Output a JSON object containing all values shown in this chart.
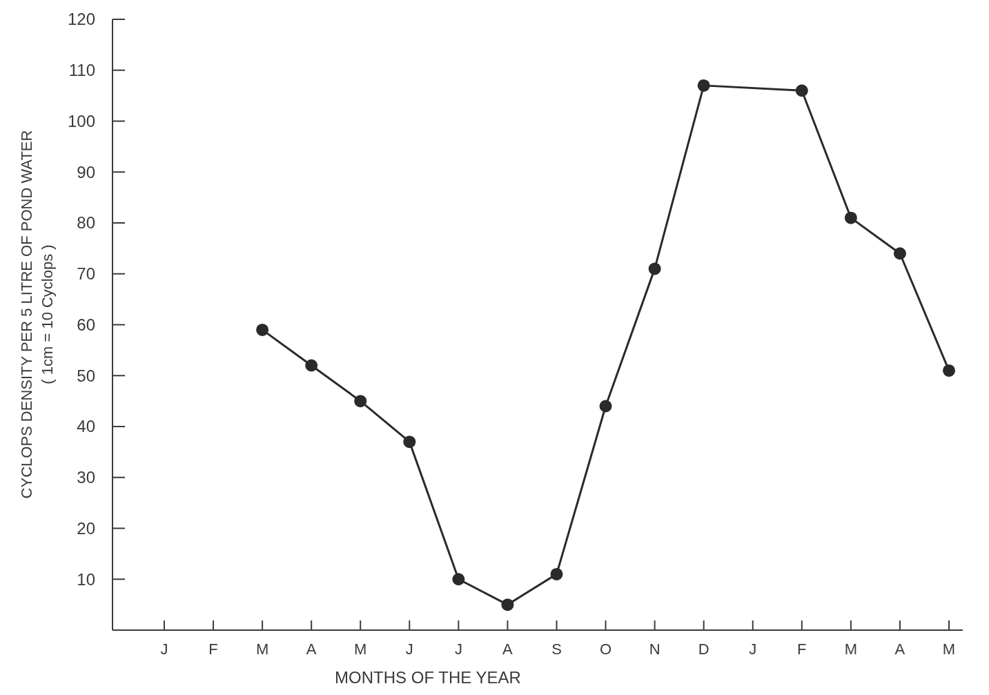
{
  "chart_data": {
    "type": "line",
    "xlabel": "MONTHS OF THE YEAR",
    "ylabel": "CYCLOPS DENSITY PER 5 LITRE OF POND WATER\n( 1cm = 10 Cyclops )",
    "categories": [
      "J",
      "F",
      "M",
      "A",
      "M",
      "J",
      "J",
      "A",
      "S",
      "O",
      "N",
      "D",
      "J",
      "F",
      "M",
      "A",
      "M"
    ],
    "series": [
      {
        "color": "#2a2a2a",
        "values": [
          null,
          null,
          59,
          52,
          45,
          37,
          10,
          5,
          11,
          44,
          71,
          107,
          null,
          106,
          81,
          74,
          51
        ]
      }
    ],
    "ylim": [
      0,
      120
    ],
    "yticks": [
      10,
      20,
      30,
      40,
      50,
      60,
      70,
      80,
      90,
      100,
      110,
      120
    ],
    "grid": false,
    "marker": "circle",
    "line_style": "solid"
  }
}
